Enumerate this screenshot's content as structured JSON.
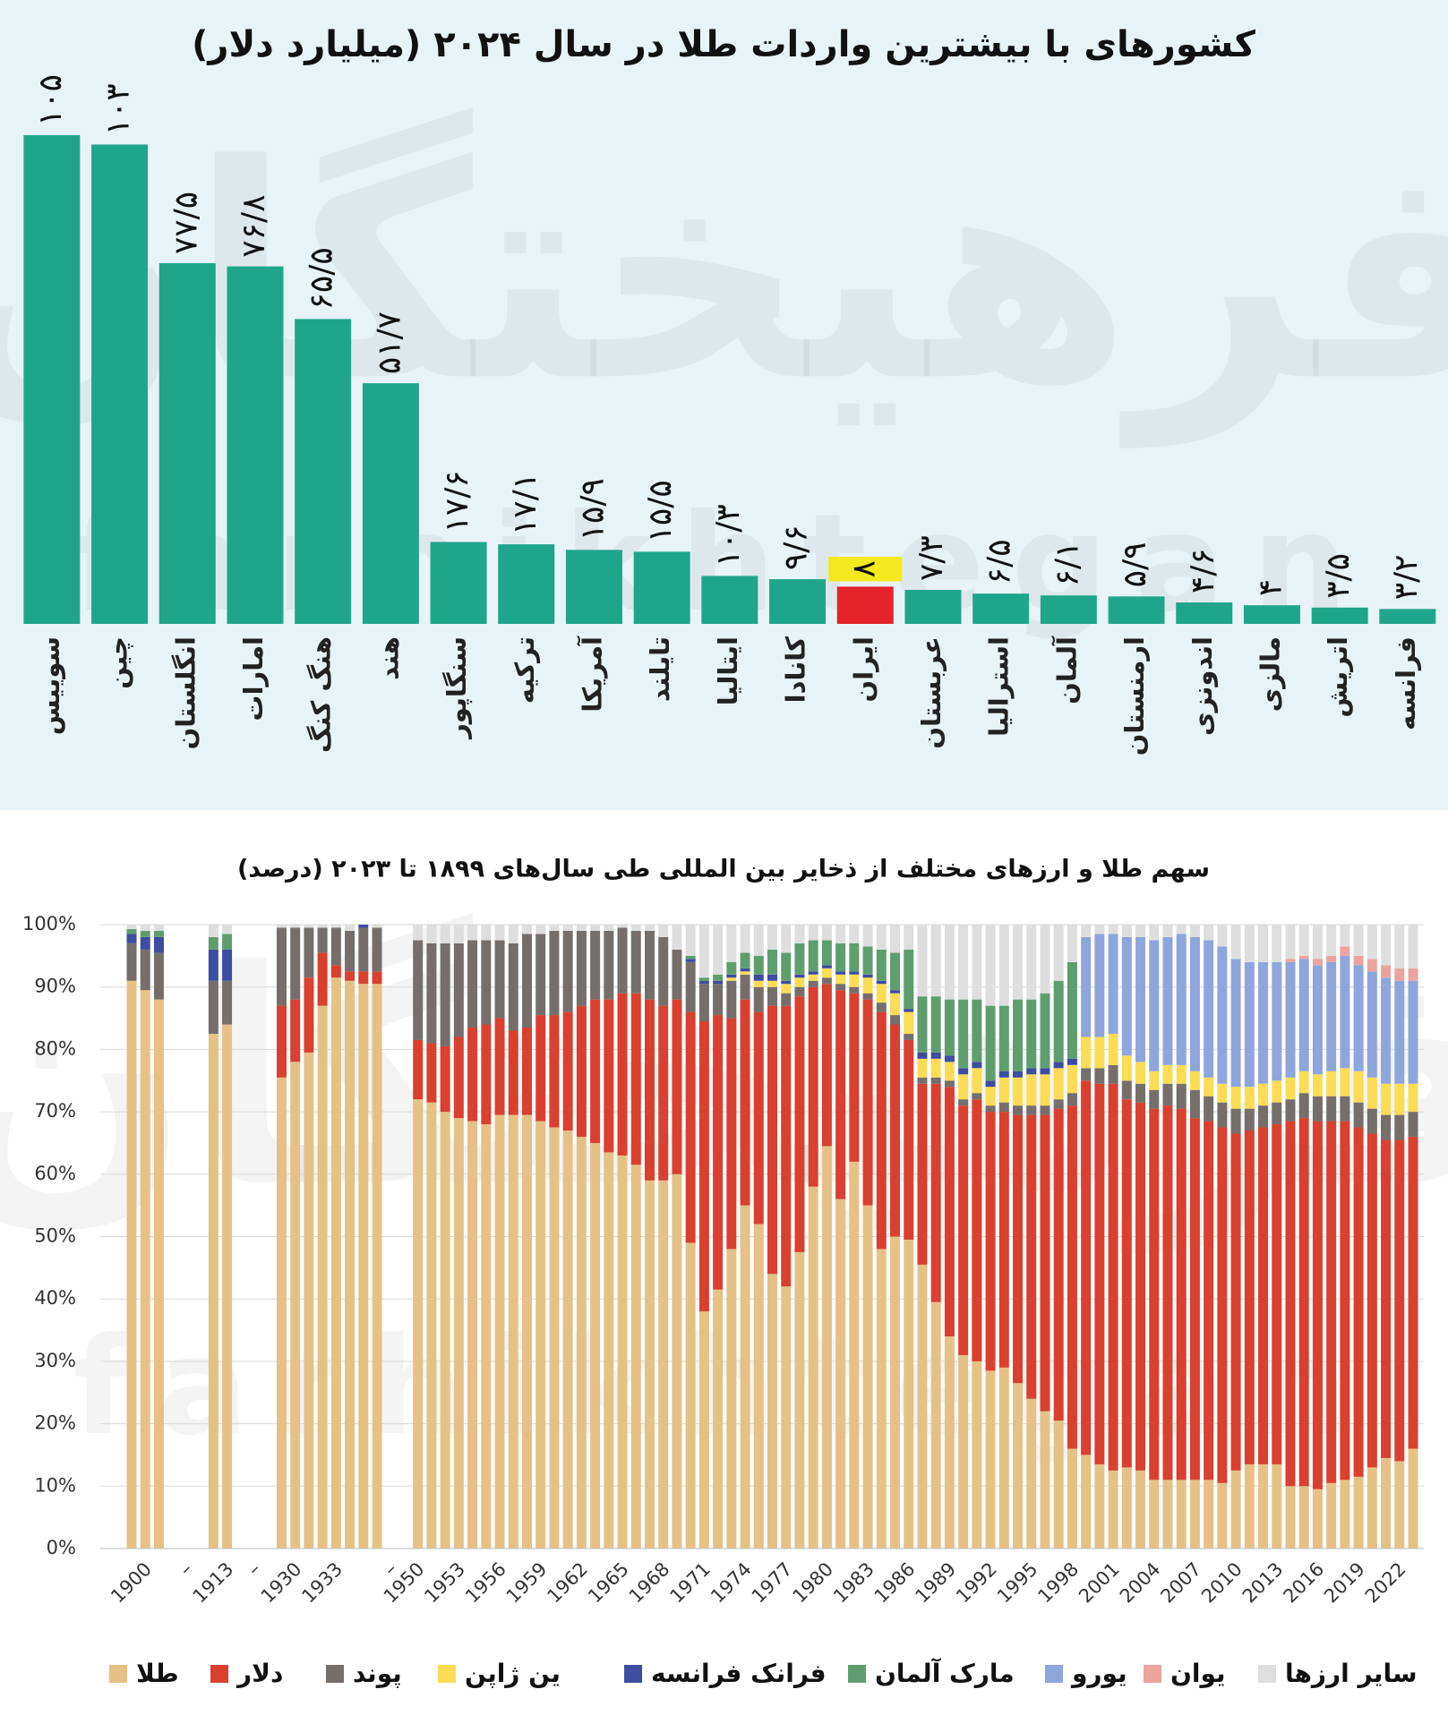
{
  "watermark": {
    "logo": "فرهیختگان",
    "site": "farhikhtegan"
  },
  "chart_data": [
    {
      "type": "bar",
      "title": "کشورهای با بیشترین واردات طلا در سال ۲۰۲۴ (میلیارد دلار)",
      "categories": [
        "سوییس",
        "چین",
        "انگلستان",
        "امارات",
        "هنگ کنگ",
        "هند",
        "سنگاپور",
        "ترکیه",
        "آمریکا",
        "تایلند",
        "ایتالیا",
        "کانادا",
        "ایران",
        "عربستان",
        "استرالیا",
        "آلمان",
        "ارمنستان",
        "اندونزی",
        "مالزی",
        "اتریش",
        "فرانسه"
      ],
      "values": [
        105,
        103,
        77.5,
        76.8,
        65.5,
        51.7,
        17.6,
        17.1,
        15.9,
        15.5,
        10.3,
        9.6,
        8,
        7.3,
        6.5,
        6.1,
        5.9,
        4.6,
        4,
        3.5,
        3.2
      ],
      "value_labels": [
        "۱۰۵",
        "۱۰۳",
        "۷۷/۵",
        "۷۶/۸",
        "۶۵/۵",
        "۵۱/۷",
        "۱۷/۶",
        "۱۷/۱",
        "۱۵/۹",
        "۱۵/۵",
        "۱۰/۳",
        "۹/۶",
        "۸",
        "۷/۳",
        "۶/۵",
        "۶/۱",
        "۵/۹",
        "۴/۶",
        "۴",
        "۳/۵",
        "۳/۲"
      ],
      "colors": [
        "#1fa68a",
        "#1fa68a",
        "#1fa68a",
        "#1fa68a",
        "#1fa68a",
        "#1fa68a",
        "#1fa68a",
        "#1fa68a",
        "#1fa68a",
        "#1fa68a",
        "#1fa68a",
        "#1fa68a",
        "#e5232a",
        "#1fa68a",
        "#1fa68a",
        "#1fa68a",
        "#1fa68a",
        "#1fa68a",
        "#1fa68a",
        "#1fa68a",
        "#1fa68a"
      ],
      "highlight_label_color": "#f3ea1d"
    },
    {
      "type": "stacked_bar",
      "title": "سهم طلا و ارزهای مختلف از ذخایر بین المللی طی سال‌های ۱۸۹۹ تا ۲۰۲۳ (درصد)",
      "categories": [
        null,
        "1900",
        null,
        null,
        "–",
        null,
        null,
        "1913",
        null,
        "–",
        null,
        null,
        "1930",
        null,
        null,
        "1933",
        null,
        null,
        null,
        "–",
        null,
        "1950",
        null,
        null,
        "1953",
        null,
        null,
        "1956",
        null,
        null,
        "1959",
        null,
        null,
        "1962",
        null,
        null,
        "1965",
        null,
        null,
        "1968",
        null,
        null,
        "1971",
        null,
        null,
        "1974",
        null,
        null,
        "1977",
        null,
        null,
        "1980",
        null,
        null,
        "1983",
        null,
        null,
        "1986",
        null,
        null,
        "1989",
        null,
        null,
        "1992",
        null,
        null,
        "1995",
        null,
        null,
        "1998",
        null,
        null,
        "2001",
        null,
        null,
        "2004",
        null,
        null,
        "2007",
        null,
        null,
        "2010",
        null,
        null,
        "2013",
        null,
        null,
        "2016",
        null,
        null,
        "2019",
        null,
        null,
        "2022",
        null
      ],
      "ylim": [
        0,
        100
      ],
      "yticks": [
        {
          "value": 0,
          "label": "0%"
        },
        {
          "value": 10,
          "label": "10%"
        },
        {
          "value": 20,
          "label": "20%"
        },
        {
          "value": 30,
          "label": "30%"
        },
        {
          "value": 40,
          "label": "40%"
        },
        {
          "value": 50,
          "label": "50%"
        },
        {
          "value": 60,
          "label": "60%"
        },
        {
          "value": 70,
          "label": "70%"
        },
        {
          "value": 80,
          "label": "80%"
        },
        {
          "value": 90,
          "label": "90%"
        },
        {
          "value": 100,
          "label": "100%"
        }
      ],
      "grid": true,
      "series": [
        {
          "name": "طلا",
          "color": "#e6c186",
          "values": [
            91,
            89.5,
            88,
            null,
            null,
            null,
            82.5,
            84,
            null,
            null,
            null,
            75.5,
            78,
            79.5,
            87,
            91.5,
            91,
            90.5,
            90.5,
            null,
            null,
            72,
            71.5,
            70,
            69,
            68.5,
            68,
            69.5,
            69.5,
            69.5,
            68.5,
            67.5,
            67,
            66,
            65,
            63.5,
            63,
            61.5,
            59,
            59,
            60,
            49,
            38,
            41.5,
            48,
            55,
            52,
            44,
            42,
            47.5,
            58,
            64.5,
            56,
            62,
            55,
            48,
            50,
            49.5,
            45.5,
            39.5,
            34,
            31,
            30,
            28.5,
            29,
            26.5,
            24,
            22,
            20.5,
            16,
            15,
            13.5,
            12.5,
            13,
            12.5,
            11,
            11,
            11,
            11,
            11,
            10.5,
            12.5,
            13.5,
            13.5,
            13.5,
            10,
            10,
            9.5,
            10.5,
            11,
            11.5,
            13,
            14.5,
            14,
            16
          ]
        },
        {
          "name": "دلار",
          "color": "#d9402f",
          "values": [
            0,
            0,
            0,
            null,
            null,
            null,
            0,
            0,
            null,
            null,
            null,
            11.5,
            10,
            12,
            8.5,
            2,
            1.5,
            2,
            2,
            null,
            null,
            9.5,
            9.5,
            10.5,
            13,
            15,
            16,
            15.5,
            13.5,
            14,
            17,
            18,
            19,
            21,
            23,
            24.5,
            26,
            27.5,
            29,
            28,
            28,
            37,
            46.5,
            44,
            37,
            33,
            34,
            43,
            45,
            41,
            32,
            26,
            33.5,
            27,
            33,
            38,
            34,
            32,
            29,
            35,
            40,
            40,
            42,
            41.5,
            41,
            43,
            45.5,
            47.5,
            50,
            55,
            60,
            61,
            62,
            59,
            59,
            59.5,
            60,
            59.5,
            58,
            57.5,
            57,
            54,
            53.5,
            54,
            54.5,
            58.5,
            59,
            59,
            58,
            57.5,
            56,
            53.5,
            51,
            51.5,
            50
          ]
        },
        {
          "name": "پوند",
          "color": "#756e6b",
          "values": [
            6,
            6.5,
            7.5,
            null,
            null,
            null,
            8.5,
            7,
            null,
            null,
            null,
            12.5,
            11.5,
            8,
            4,
            6,
            6.5,
            7,
            7,
            null,
            null,
            16,
            16,
            16.5,
            15,
            14,
            13.5,
            12.5,
            14,
            15,
            13,
            13.5,
            13,
            12,
            11,
            11,
            10.5,
            10,
            11,
            11,
            8,
            8,
            6,
            5,
            6,
            4,
            4,
            3,
            2,
            1.5,
            1,
            1,
            1,
            1,
            1,
            1.5,
            1.5,
            1,
            1,
            1,
            1,
            1,
            1,
            1,
            1.5,
            1.5,
            1.5,
            1.5,
            1.5,
            2,
            2,
            2.5,
            3,
            3,
            3,
            3,
            3.5,
            4,
            4.5,
            4,
            4,
            4,
            3.5,
            3.5,
            3.5,
            3.5,
            4,
            4,
            4,
            4,
            4,
            4,
            4,
            4,
            4
          ]
        },
        {
          "name": "ین ژاپن",
          "color": "#fbdc55",
          "values": [
            0,
            0,
            0,
            null,
            null,
            null,
            0,
            0,
            null,
            null,
            null,
            0,
            0,
            0,
            0,
            0,
            0,
            0,
            0,
            null,
            null,
            0,
            0,
            0,
            0,
            0,
            0,
            0,
            0,
            0,
            0,
            0,
            0,
            0,
            0,
            0,
            0,
            0,
            0,
            0,
            0,
            0,
            0,
            0,
            0.5,
            0.5,
            1,
            1,
            1.5,
            1.5,
            1,
            1.5,
            1.5,
            2,
            2.5,
            3,
            3.5,
            3.5,
            3,
            3,
            3,
            4,
            4,
            3,
            4,
            4.5,
            5,
            5,
            5,
            4.5,
            5,
            5,
            5,
            4,
            3.5,
            3,
            3,
            3,
            3,
            3,
            3,
            3.5,
            3.5,
            3.5,
            3.5,
            3.5,
            3.5,
            3.5,
            4,
            4.5,
            5,
            5,
            5,
            5,
            4.5
          ]
        },
        {
          "name": "فرانک فرانسه",
          "color": "#3d4da0",
          "values": [
            1.5,
            2,
            2.5,
            null,
            null,
            null,
            5,
            5,
            null,
            null,
            null,
            0,
            0,
            0,
            0,
            0,
            0,
            0.5,
            0,
            null,
            null,
            0,
            0,
            0,
            0,
            0,
            0,
            0,
            0,
            0,
            0,
            0,
            0,
            0,
            0,
            0,
            0,
            0,
            0,
            0,
            0,
            0.5,
            0.5,
            0.5,
            0.5,
            0.5,
            1,
            1,
            0.5,
            0.5,
            0.5,
            0.5,
            0.5,
            0.5,
            0.5,
            0.5,
            0.5,
            0.5,
            1,
            1,
            1,
            1,
            1,
            1,
            1,
            1,
            1,
            1,
            1,
            1,
            0,
            0,
            0,
            0,
            0,
            0,
            0,
            0,
            0,
            0,
            0,
            0,
            0,
            0,
            0,
            0,
            0,
            0,
            0,
            0,
            0,
            0,
            0,
            0,
            0
          ]
        },
        {
          "name": "مارک آلمان",
          "color": "#5e9e6e",
          "values": [
            0.8,
            1,
            1,
            null,
            null,
            null,
            2,
            2.5,
            null,
            null,
            null,
            0,
            0,
            0,
            0,
            0,
            0,
            0,
            0,
            null,
            null,
            0,
            0,
            0,
            0,
            0,
            0,
            0,
            0,
            0,
            0,
            0,
            0,
            0,
            0,
            0,
            0,
            0,
            0,
            0,
            0,
            0.5,
            0.5,
            1,
            2,
            2.5,
            3,
            4,
            4.5,
            5,
            5,
            4,
            4.5,
            4.5,
            4.5,
            5,
            6,
            9.5,
            9,
            9,
            9,
            11,
            10,
            12,
            10.5,
            11.5,
            11,
            12,
            13,
            15.5,
            0,
            0,
            0,
            0,
            0,
            0,
            0,
            0,
            0,
            0,
            0,
            0,
            0,
            0,
            0,
            0,
            0,
            0,
            0,
            0,
            0,
            0,
            0,
            0,
            0
          ]
        },
        {
          "name": "یورو",
          "color": "#8ea6dc",
          "values": [
            0,
            0,
            0,
            null,
            null,
            null,
            0,
            0,
            null,
            null,
            null,
            0,
            0,
            0,
            0,
            0,
            0,
            0,
            0,
            null,
            null,
            0,
            0,
            0,
            0,
            0,
            0,
            0,
            0,
            0,
            0,
            0,
            0,
            0,
            0,
            0,
            0,
            0,
            0,
            0,
            0,
            0,
            0,
            0,
            0,
            0,
            0,
            0,
            0,
            0,
            0,
            0,
            0,
            0,
            0,
            0,
            0,
            0,
            0,
            0,
            0,
            0,
            0,
            0,
            0,
            0,
            0,
            0,
            0,
            0,
            16,
            16.5,
            16,
            19,
            20,
            21,
            20.5,
            21,
            21.5,
            22,
            22,
            20.5,
            20,
            19.5,
            19,
            18.5,
            18,
            17.5,
            17.5,
            18,
            17,
            17,
            17,
            16.5,
            16.5
          ]
        },
        {
          "name": "یوان",
          "color": "#eaa39e",
          "values": [
            0,
            0,
            0,
            null,
            null,
            null,
            0,
            0,
            null,
            null,
            null,
            0,
            0,
            0,
            0,
            0,
            0,
            0,
            0,
            null,
            null,
            0,
            0,
            0,
            0,
            0,
            0,
            0,
            0,
            0,
            0,
            0,
            0,
            0,
            0,
            0,
            0,
            0,
            0,
            0,
            0,
            0,
            0,
            0,
            0,
            0,
            0,
            0,
            0,
            0,
            0,
            0,
            0,
            0,
            0,
            0,
            0,
            0,
            0,
            0,
            0,
            0,
            0,
            0,
            0,
            0,
            0,
            0,
            0,
            0,
            0,
            0,
            0,
            0,
            0,
            0,
            0,
            0,
            0,
            0,
            0,
            0,
            0,
            0,
            0,
            0.5,
            0.5,
            1,
            1,
            1.5,
            1.5,
            2,
            2,
            2,
            2
          ]
        },
        {
          "name": "سایر ارزها",
          "color": "#dedede",
          "values": [
            0.7,
            1,
            1,
            null,
            null,
            null,
            2,
            1.5,
            null,
            null,
            null,
            0.5,
            0.5,
            0.5,
            0.5,
            0.5,
            1,
            0,
            0.5,
            null,
            null,
            2.5,
            3,
            3,
            3,
            2.5,
            2.5,
            2.5,
            3,
            1.5,
            1.5,
            1,
            1,
            1,
            1,
            1,
            0.5,
            1,
            1,
            2,
            4,
            5,
            8.5,
            8,
            6,
            4.5,
            5,
            4,
            4.5,
            3,
            2.5,
            2.5,
            3,
            3,
            3.5,
            4,
            4.5,
            4,
            11.5,
            11.5,
            12,
            12,
            12,
            13,
            13,
            12,
            12,
            11,
            9,
            6,
            2,
            1.5,
            1.5,
            2,
            2,
            2.5,
            2,
            1.5,
            2,
            2.5,
            3.5,
            5.5,
            6,
            6,
            6,
            5.5,
            5,
            5.5,
            5,
            3.5,
            5,
            5.5,
            6.5,
            7,
            7
          ]
        }
      ]
    }
  ]
}
